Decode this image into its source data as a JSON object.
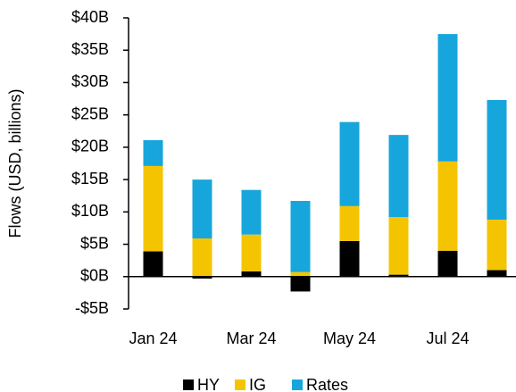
{
  "chart_data": {
    "type": "stacked_bar",
    "y_label": "Flows (USD, billions)",
    "categories": [
      "Jan 24",
      null,
      "Mar 24",
      null,
      "May 24",
      null,
      "Jul 24",
      null
    ],
    "series": [
      {
        "name": "HY",
        "color": "#000000",
        "values": [
          3.9,
          -0.3,
          0.8,
          -2.3,
          5.5,
          0.3,
          4.0,
          1.0
        ]
      },
      {
        "name": "IG",
        "color": "#f5c400",
        "values": [
          13.2,
          5.9,
          5.7,
          0.7,
          5.4,
          8.9,
          13.8,
          7.8
        ]
      },
      {
        "name": "Rates",
        "color": "#17a6dc",
        "values": [
          4.0,
          9.1,
          6.9,
          11.0,
          13.0,
          12.7,
          19.7,
          18.5
        ]
      }
    ],
    "ylim": [
      -5,
      40
    ],
    "yticks": [
      {
        "value": -5,
        "label": "-$5B"
      },
      {
        "value": 0,
        "label": "$0B"
      },
      {
        "value": 5,
        "label": "$5B"
      },
      {
        "value": 10,
        "label": "$10B"
      },
      {
        "value": 15,
        "label": "$15B"
      },
      {
        "value": 20,
        "label": "$20B"
      },
      {
        "value": 25,
        "label": "$25B"
      },
      {
        "value": 30,
        "label": "$30B"
      },
      {
        "value": 35,
        "label": "$35B"
      },
      {
        "value": 40,
        "label": "$40B"
      }
    ],
    "legend": "bottom"
  }
}
